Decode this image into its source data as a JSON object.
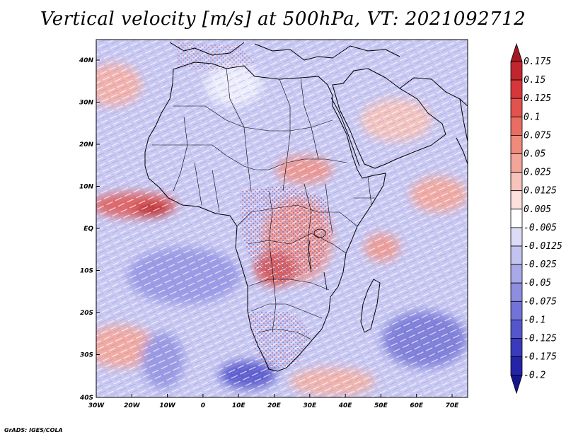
{
  "title": "Vertical velocity [m/s] at 500hPa, VT: 2021092712",
  "credit": "GrADS: IGES/COLA",
  "map": {
    "lon_ticks": [
      "30W",
      "20W",
      "10W",
      "0",
      "10E",
      "20E",
      "30E",
      "40E",
      "50E",
      "60E",
      "70E"
    ],
    "lat_ticks": [
      "40N",
      "30N",
      "20N",
      "10N",
      "EQ",
      "10S",
      "20S",
      "30S",
      "40S"
    ],
    "lon_range": [
      -30,
      75
    ],
    "lat_range": [
      -40,
      44
    ],
    "variable": "Vertical velocity",
    "level": "500hPa",
    "valid_time": "2021092712"
  },
  "colorbar": {
    "labels": [
      "0.175",
      "0.15",
      "0.125",
      "0.1",
      "0.075",
      "0.05",
      "0.025",
      "0.0125",
      "0.005",
      "-0.005",
      "-0.0125",
      "-0.025",
      "-0.05",
      "-0.075",
      "-0.1",
      "-0.125",
      "-0.175",
      "-0.2"
    ],
    "colors": [
      "#a51822",
      "#c1262e",
      "#d7373b",
      "#e2534e",
      "#ea6d63",
      "#f08a7d",
      "#f4a599",
      "#f8c3bb",
      "#fbe0dc",
      "#ffffff",
      "#dcdcf7",
      "#c3c3f0",
      "#a9a9e9",
      "#8e8ee1",
      "#7272d8",
      "#5656cc",
      "#3a3abd",
      "#2424a8",
      "#15158f"
    ]
  }
}
